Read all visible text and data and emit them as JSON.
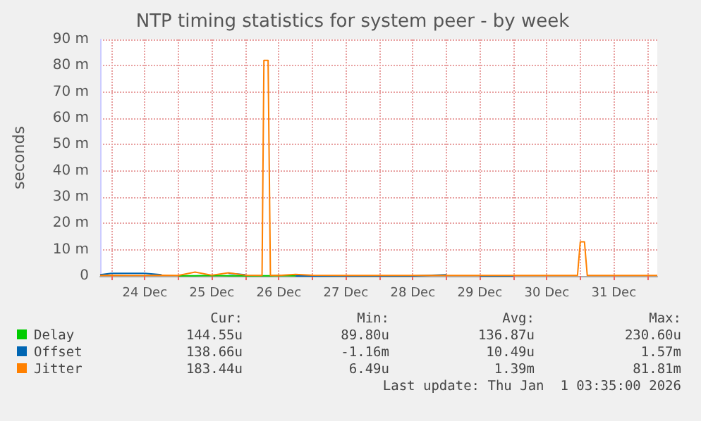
{
  "chart_data": {
    "type": "line",
    "title": "NTP timing statistics for system peer - by week",
    "ylabel": "seconds",
    "x": [
      "2025-12-23T20:00",
      "2025-12-24T00:00",
      "2025-12-24T06:00",
      "2025-12-24T12:00",
      "2025-12-24T18:00",
      "2025-12-25T00:00",
      "2025-12-25T06:00",
      "2025-12-25T12:00",
      "2025-12-25T18:00",
      "2025-12-26T00:00",
      "2025-12-26T06:00",
      "2025-12-26T06:40",
      "2025-12-26T08:10",
      "2025-12-26T09:00",
      "2025-12-26T12:00",
      "2025-12-26T18:00",
      "2025-12-27T00:00",
      "2025-12-27T12:00",
      "2025-12-28T00:00",
      "2025-12-28T12:00",
      "2025-12-29T00:00",
      "2025-12-29T06:00",
      "2025-12-29T12:00",
      "2025-12-30T00:00",
      "2025-12-30T12:00",
      "2025-12-30T23:00",
      "2025-12-31T00:00",
      "2025-12-31T01:30",
      "2025-12-31T02:30",
      "2025-12-31T06:00",
      "2025-12-31T12:00",
      "2026-01-01T00:00",
      "2026-01-01T03:35"
    ],
    "series": [
      {
        "name": "Delay",
        "color": "#00cc00",
        "values": [
          null,
          null,
          null,
          null,
          null,
          0.1,
          0.1,
          0.2,
          0.1,
          0.1,
          0.1,
          0.1,
          0.1,
          0.1,
          0.2,
          0.1,
          null,
          null,
          null,
          null,
          null,
          null,
          null,
          null,
          null,
          null,
          null,
          null,
          null,
          null,
          null,
          null,
          null
        ]
      },
      {
        "name": "Offset",
        "color": "#0066b3",
        "values": [
          0.5,
          1.0,
          1.0,
          1.0,
          0.5,
          null,
          null,
          null,
          1.0,
          0.5,
          null,
          null,
          null,
          null,
          null,
          0,
          0,
          0,
          0,
          0,
          0.5,
          null,
          0,
          0,
          null,
          null,
          null,
          null,
          null,
          null,
          null,
          null,
          null
        ]
      },
      {
        "name": "Jitter",
        "color": "#ff8000",
        "values": [
          0.2,
          0.3,
          0.2,
          0.2,
          0.3,
          0.2,
          1.5,
          0.3,
          1.2,
          0.3,
          0.2,
          82,
          82,
          0.2,
          0.2,
          0.6,
          0.3,
          0.2,
          0.2,
          0.2,
          0.2,
          0.2,
          0.2,
          0.2,
          0.2,
          0.2,
          13,
          13,
          0.2,
          0.2,
          0.2,
          0.2,
          0.2
        ]
      }
    ],
    "xlim": [
      "2025-12-23T20:00",
      "2026-01-01T03:35"
    ],
    "xticks": [
      {
        "value": "2025-12-24T00:00",
        "label": null
      },
      {
        "value": "2025-12-24T12:00",
        "label": "24 Dec"
      },
      {
        "value": "2025-12-25T00:00",
        "label": null
      },
      {
        "value": "2025-12-25T12:00",
        "label": "25 Dec"
      },
      {
        "value": "2025-12-26T00:00",
        "label": null
      },
      {
        "value": "2025-12-26T12:00",
        "label": "26 Dec"
      },
      {
        "value": "2025-12-27T00:00",
        "label": null
      },
      {
        "value": "2025-12-27T12:00",
        "label": "27 Dec"
      },
      {
        "value": "2025-12-28T00:00",
        "label": null
      },
      {
        "value": "2025-12-28T12:00",
        "label": "28 Dec"
      },
      {
        "value": "2025-12-29T00:00",
        "label": null
      },
      {
        "value": "2025-12-29T12:00",
        "label": "29 Dec"
      },
      {
        "value": "2025-12-30T00:00",
        "label": null
      },
      {
        "value": "2025-12-30T12:00",
        "label": "30 Dec"
      },
      {
        "value": "2025-12-31T00:00",
        "label": null
      },
      {
        "value": "2025-12-31T12:00",
        "label": "31 Dec"
      },
      {
        "value": "2026-01-01T00:00",
        "label": null
      }
    ],
    "ylim": [
      0,
      90
    ],
    "yticks": [
      0,
      {
        "value": 10,
        "label": "10 m"
      },
      {
        "value": 20,
        "label": "20 m"
      },
      {
        "value": 30,
        "label": "30 m"
      },
      {
        "value": 40,
        "label": "40 m"
      },
      {
        "value": 50,
        "label": "50 m"
      },
      {
        "value": 60,
        "label": "60 m"
      },
      {
        "value": 70,
        "label": "70 m"
      },
      {
        "value": 80,
        "label": "80 m"
      },
      {
        "value": 90,
        "label": "90 m"
      }
    ],
    "grid": true,
    "legend": "bottom",
    "marker": "none",
    "line_style": "solid",
    "annotations": [
      "Cur:",
      "Min:",
      "Avg:",
      "Max:",
      "144.55u",
      "89.80u",
      "136.87u",
      "230.60u",
      "138.66u",
      "-1.16m",
      "10.49u",
      "1.57m",
      "183.44u",
      "6.49u",
      "1.39m",
      "81.81m",
      "Last update: Thu Jan  1 03:35:00 2026"
    ]
  }
}
